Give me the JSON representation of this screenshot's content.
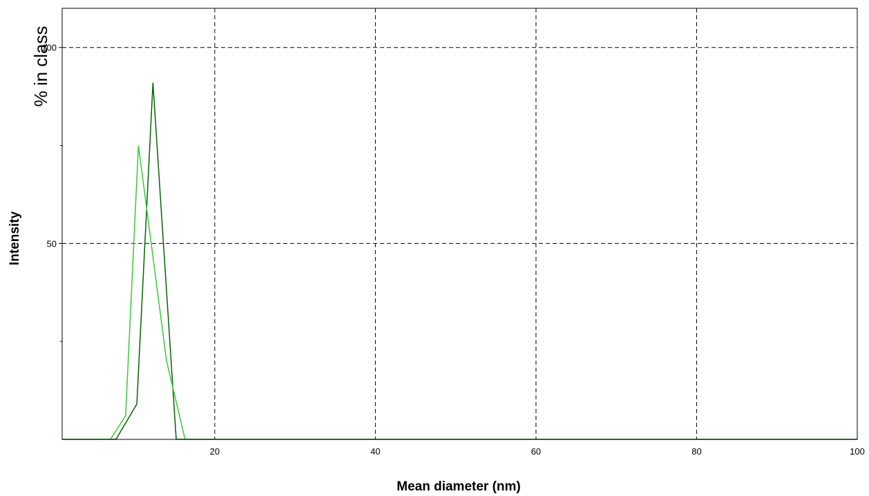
{
  "chart_data": {
    "type": "line",
    "xlabel": "Mean diameter (nm)",
    "ylabel": "Intensity",
    "y_unit_label": "% in class",
    "xlim": [
      1,
      100
    ],
    "ylim": [
      0,
      110
    ],
    "x_ticks": [
      20,
      40,
      60,
      80,
      100
    ],
    "y_ticks": [
      50,
      100
    ],
    "y_minor_ticks": [
      25,
      75
    ],
    "grid": true,
    "series": [
      {
        "color": "#006400",
        "x": [
          1,
          7.7,
          10.3,
          12.3,
          15.2,
          17,
          100
        ],
        "y": [
          0,
          0,
          9,
          91,
          0,
          0,
          0
        ]
      },
      {
        "color": "#33cc33",
        "x": [
          1,
          5.5,
          7,
          8.9,
          10.5,
          14,
          16.3,
          100
        ],
        "y": [
          0,
          0,
          0,
          6,
          75,
          20,
          0,
          0
        ]
      }
    ]
  }
}
